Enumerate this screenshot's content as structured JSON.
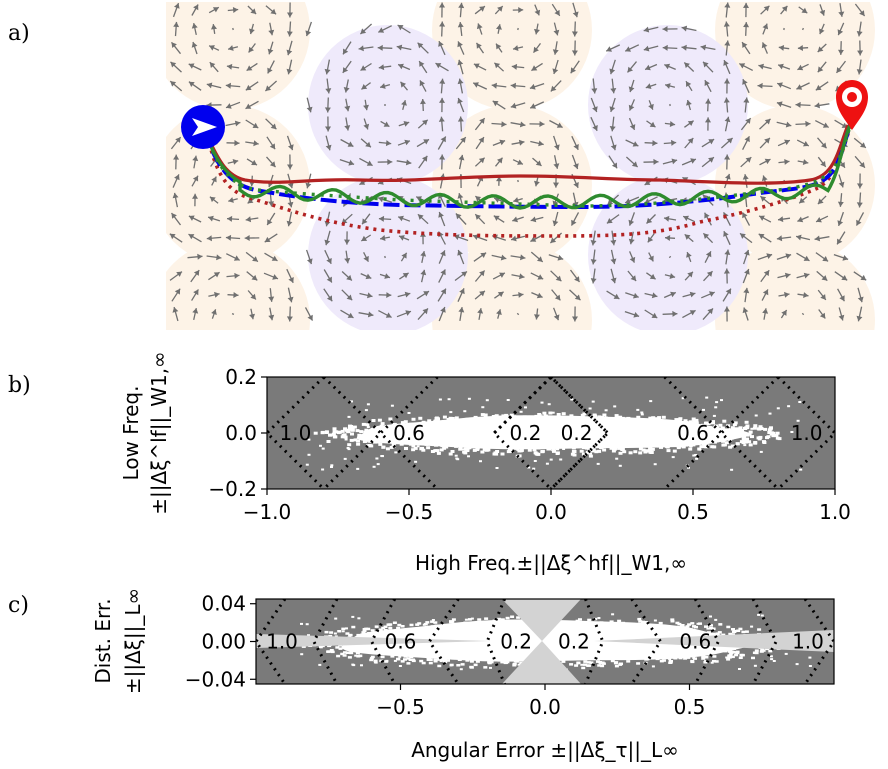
{
  "panel_labels": [
    "a)",
    "b)",
    "c)"
  ],
  "colors": {
    "orange_disk": "#fdf3e7",
    "purple_disk": "#efeafb",
    "arrow": "#707070",
    "solid_red": "#b22222",
    "dotted_red": "#b22222",
    "blue": "#0000ee",
    "green": "#2e8b2e",
    "grey_bg": "#7a7a7a",
    "light_grey": "#d3d3d3"
  },
  "panel_a": {
    "start_icon": "blue-arrow-circle-icon",
    "goal_icon": "red-map-pin-icon"
  },
  "chart_data": [
    {
      "type": "heatmap",
      "panel": "b",
      "xlabel": "High Freq.±||Δξ^hf||_W1,∞",
      "ylabel_line1": "Low Freq.",
      "ylabel_line2": "±||Δξ^lf||_W1,∞",
      "xlim": [
        -1.0,
        1.0
      ],
      "ylim": [
        -0.2,
        0.2
      ],
      "xticks": [
        "−1.0",
        "−0.5",
        "0.0",
        "0.5",
        "1.0"
      ],
      "xtick_values": [
        -1.0,
        -0.5,
        0.0,
        0.5,
        1.0
      ],
      "yticks": [
        "−0.2",
        "0.0",
        "0.2"
      ],
      "ytick_values": [
        -0.2,
        0.0,
        0.2
      ],
      "contour_levels": [
        0.2,
        0.6,
        1.0
      ],
      "contour_labels": [
        {
          "text": "1.0",
          "x": -0.9,
          "y": 0.0
        },
        {
          "text": "0.6",
          "x": -0.5,
          "y": 0.0
        },
        {
          "text": "0.2",
          "x": -0.09,
          "y": 0.0
        },
        {
          "text": "0.2",
          "x": 0.09,
          "y": 0.0
        },
        {
          "text": "0.6",
          "x": 0.5,
          "y": 0.0
        },
        {
          "text": "1.0",
          "x": 0.9,
          "y": 0.0
        }
      ]
    },
    {
      "type": "heatmap",
      "panel": "c",
      "xlabel": "Angular Error ±||Δξ_τ||_L∞",
      "ylabel_line1": "Dist. Err.",
      "ylabel_line2": "±||Δξ||_L∞",
      "xlim": [
        -1.0,
        1.0
      ],
      "ylim": [
        -0.045,
        0.045
      ],
      "xticks": [
        "−0.5",
        "0.0",
        "0.5"
      ],
      "xtick_values": [
        -0.5,
        0.0,
        0.5
      ],
      "yticks": [
        "0.04",
        "0.00",
        "−0.04"
      ],
      "ytick_values": [
        0.04,
        0.0,
        -0.04
      ],
      "contour_levels": [
        0.2,
        0.6,
        1.0
      ],
      "contour_labels": [
        {
          "text": "1.0",
          "x": -0.91,
          "y": 0.0
        },
        {
          "text": "0.6",
          "x": -0.5,
          "y": 0.0
        },
        {
          "text": "0.2",
          "x": -0.1,
          "y": 0.0
        },
        {
          "text": "0.2",
          "x": 0.1,
          "y": 0.0
        },
        {
          "text": "0.6",
          "x": 0.52,
          "y": 0.0
        },
        {
          "text": "1.0",
          "x": 0.91,
          "y": 0.0
        }
      ]
    }
  ]
}
